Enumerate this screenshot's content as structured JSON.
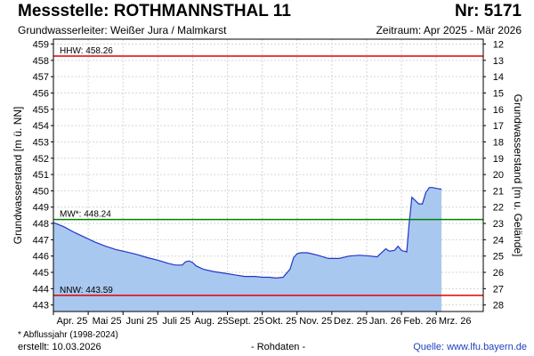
{
  "header": {
    "title": "Messstelle: ROTHMANNSTHAL 11",
    "number": "Nr: 5171",
    "aquifer": "Grundwasserleiter:  Weißer Jura / Malmkarst",
    "period": "Zeitraum: Apr 2025 - Mär 2026"
  },
  "footer": {
    "footnote": "* Abflussjahr (1998-2024)",
    "created": "erstellt:  10.03.2026",
    "rawdata": "- Rohdaten -",
    "source": "Quelle:  www.lfu.bayern.de"
  },
  "colors": {
    "area_fill": "#a9c8f0",
    "line": "#2336c8",
    "hhw_line": "#e00000",
    "mw_line": "#008000",
    "nnw_line": "#e00000",
    "grid": "#d6d6d6"
  },
  "chart_data": {
    "type": "area",
    "ylabel": "Grundwasserstand [m ü. NN]",
    "y2label": "Grundwasserstand [m u. Gelände]",
    "ylim": [
      442.6,
      459.3
    ],
    "yticks": [
      443,
      444,
      445,
      446,
      447,
      448,
      449,
      450,
      451,
      452,
      453,
      454,
      455,
      456,
      457,
      458,
      459
    ],
    "y2ticks": [
      "28",
      "27",
      "26",
      "25",
      "24",
      "23",
      "22",
      "21",
      "20",
      "19",
      "18",
      "17",
      "16",
      "15",
      "14",
      "13",
      "12"
    ],
    "xlim": [
      0,
      12.35
    ],
    "xticks": [
      {
        "pos": 0,
        "label": "Apr. 25"
      },
      {
        "pos": 1,
        "label": "Mai 25"
      },
      {
        "pos": 2,
        "label": "Juni 25"
      },
      {
        "pos": 3,
        "label": "Juli 25"
      },
      {
        "pos": 4,
        "label": "Aug. 25"
      },
      {
        "pos": 5,
        "label": "Sept. 25"
      },
      {
        "pos": 6,
        "label": "Okt. 25"
      },
      {
        "pos": 7,
        "label": "Nov. 25"
      },
      {
        "pos": 8,
        "label": "Dez. 25"
      },
      {
        "pos": 9,
        "label": "Jan. 26"
      },
      {
        "pos": 10,
        "label": "Feb. 26"
      },
      {
        "pos": 11,
        "label": "Mrz. 26"
      }
    ],
    "grid": true,
    "reference_lines": [
      {
        "name": "HHW",
        "label": "HHW: 458.26",
        "value": 458.26
      },
      {
        "name": "MW",
        "label": "MW*: 448.24",
        "value": 448.24
      },
      {
        "name": "NNW",
        "label": "NNW: 443.59",
        "value": 443.59
      }
    ],
    "series": [
      {
        "x": [
          0,
          0.3,
          0.6,
          0.9,
          1.2,
          1.5,
          1.8,
          2.1,
          2.4,
          2.7,
          3.0,
          3.3,
          3.5,
          3.7,
          3.8,
          3.9,
          4.0,
          4.1,
          4.3,
          4.6,
          4.9,
          5.2,
          5.5,
          5.8,
          6.0,
          6.2,
          6.4,
          6.6,
          6.8,
          6.9,
          7.0,
          7.1,
          7.3,
          7.6,
          7.9,
          8.2,
          8.5,
          8.8,
          9.1,
          9.3,
          9.5,
          9.55,
          9.65,
          9.8,
          9.9,
          10.0,
          10.05,
          10.1,
          10.15,
          10.22,
          10.3,
          10.4,
          10.5,
          10.6,
          10.7,
          10.8,
          10.9,
          11.0,
          11.15
        ],
        "values": [
          448.05,
          447.8,
          447.45,
          447.15,
          446.85,
          446.6,
          446.4,
          446.25,
          446.1,
          445.9,
          445.75,
          445.55,
          445.45,
          445.45,
          445.65,
          445.7,
          445.6,
          445.4,
          445.2,
          445.05,
          444.95,
          444.85,
          444.75,
          444.75,
          444.7,
          444.7,
          444.65,
          444.7,
          445.2,
          445.9,
          446.15,
          446.2,
          446.2,
          446.05,
          445.85,
          445.85,
          446.0,
          446.05,
          446.0,
          445.95,
          446.35,
          446.45,
          446.3,
          446.35,
          446.6,
          446.35,
          446.3,
          446.3,
          446.25,
          448.0,
          449.6,
          449.4,
          449.2,
          449.2,
          449.9,
          450.2,
          450.2,
          450.15,
          450.1
        ]
      }
    ]
  }
}
